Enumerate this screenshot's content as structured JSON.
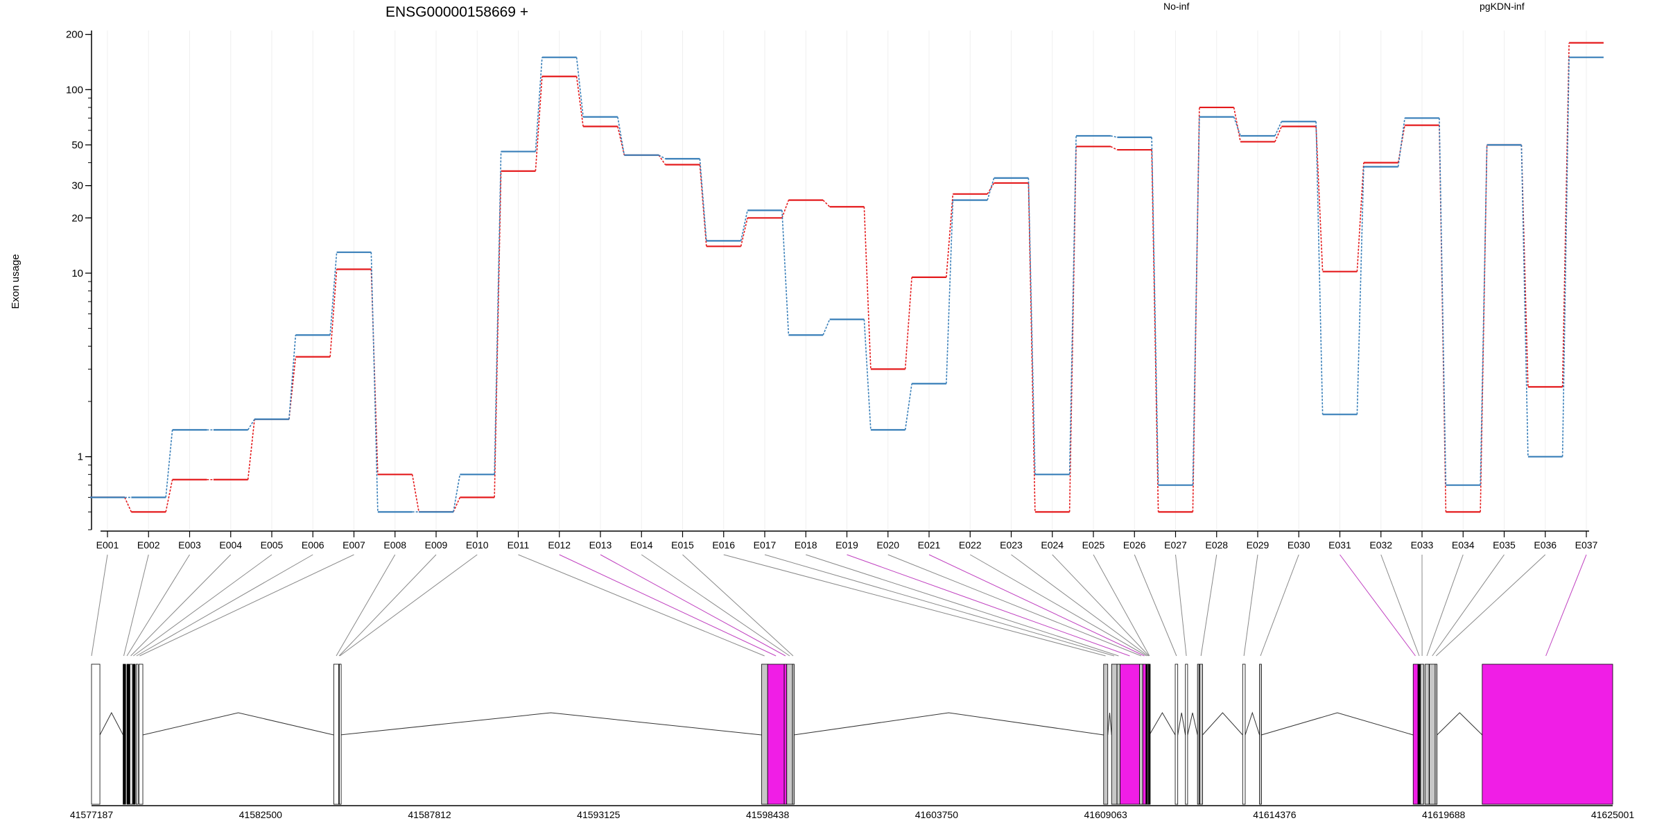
{
  "chart_data": {
    "type": "line",
    "title": "ENSG00000158669 +",
    "ylabel": "Exon usage",
    "yscale": "log",
    "ylim": [
      0.4,
      210
    ],
    "yticks": [
      1,
      10,
      20,
      30,
      50,
      100,
      200
    ],
    "categories": [
      "E001",
      "E002",
      "E003",
      "E004",
      "E005",
      "E006",
      "E007",
      "E008",
      "E009",
      "E010",
      "E011",
      "E012",
      "E013",
      "E014",
      "E015",
      "E016",
      "E017",
      "E018",
      "E019",
      "E020",
      "E021",
      "E022",
      "E023",
      "E024",
      "E025",
      "E026",
      "E027",
      "E028",
      "E029",
      "E030",
      "E031",
      "E032",
      "E033",
      "E034",
      "E035",
      "E036",
      "E037"
    ],
    "series": [
      {
        "name": "No-inf",
        "color": "#e41a1c",
        "values": [
          0.6,
          0.5,
          0.75,
          0.75,
          1.6,
          3.5,
          10.5,
          0.8,
          0.5,
          0.6,
          36,
          118,
          63,
          44,
          39,
          14,
          20,
          25,
          23,
          3,
          9.5,
          27,
          31,
          0.5,
          49,
          47,
          0.5,
          80,
          52,
          63,
          10.2,
          40,
          64,
          0.5,
          50,
          2.4,
          180
        ]
      },
      {
        "name": "pgKDN-inf",
        "color": "#377eb8",
        "values": [
          0.6,
          0.6,
          1.4,
          1.4,
          1.6,
          4.6,
          13,
          0.5,
          0.5,
          0.8,
          46,
          150,
          71,
          44,
          42,
          15,
          22,
          4.6,
          5.6,
          1.4,
          2.5,
          25,
          33,
          0.8,
          56,
          55,
          0.7,
          71,
          56,
          67,
          1.7,
          38,
          70,
          0.7,
          50,
          1,
          150
        ]
      }
    ],
    "legend_placement": "top",
    "gene_model": {
      "axis_ticks": [
        "41577187",
        "41582500",
        "41587812",
        "41593125",
        "41598438",
        "41603750",
        "41609063",
        "41614376",
        "41619688",
        "41625001"
      ],
      "range": [
        41577187,
        41625001
      ],
      "highlight_color": "#f01ee6",
      "exon_color": "#c8c8c8",
      "exons": [
        {
          "start": 41577187,
          "end": 41577450,
          "fill": "white",
          "link": "E001"
        },
        {
          "start": 41578180,
          "end": 41578260,
          "fill": "black",
          "link": "E002"
        },
        {
          "start": 41578300,
          "end": 41578380,
          "fill": "black",
          "link": "E003"
        },
        {
          "start": 41578400,
          "end": 41578470,
          "fill": "white",
          "link": "E004"
        },
        {
          "start": 41578490,
          "end": 41578560,
          "fill": "black",
          "link": "E005"
        },
        {
          "start": 41578590,
          "end": 41578650,
          "fill": "white",
          "link": "E006"
        },
        {
          "start": 41578680,
          "end": 41578800,
          "fill": "white",
          "link": "E007"
        },
        {
          "start": 41584800,
          "end": 41584960,
          "fill": "white",
          "link": "E008"
        },
        {
          "start": 41584960,
          "end": 41584980,
          "fill": "white",
          "link": "E009"
        },
        {
          "start": 41584980,
          "end": 41585000,
          "fill": "white",
          "link": "E010"
        },
        {
          "start": 41598250,
          "end": 41598440,
          "fill": "grey",
          "link": "E011"
        },
        {
          "start": 41598440,
          "end": 41598960,
          "fill": "magenta",
          "link": "E012"
        },
        {
          "start": 41598960,
          "end": 41599040,
          "fill": "magenta",
          "link": "E013"
        },
        {
          "start": 41599040,
          "end": 41599220,
          "fill": "grey",
          "link": "E014"
        },
        {
          "start": 41599220,
          "end": 41599260,
          "fill": "grey",
          "link": "E015"
        },
        {
          "start": 41609000,
          "end": 41609130,
          "fill": "grey",
          "link": "E016"
        },
        {
          "start": 41609250,
          "end": 41609420,
          "fill": "grey",
          "link": "E017"
        },
        {
          "start": 41609420,
          "end": 41609520,
          "fill": "grey",
          "link": "E018"
        },
        {
          "start": 41609520,
          "end": 41610130,
          "fill": "magenta",
          "link": "E019"
        },
        {
          "start": 41610130,
          "end": 41610230,
          "fill": "grey",
          "link": "E020"
        },
        {
          "start": 41610230,
          "end": 41610330,
          "fill": "magenta",
          "link": "E021"
        },
        {
          "start": 41610330,
          "end": 41610380,
          "fill": "black",
          "link": "E022"
        },
        {
          "start": 41610380,
          "end": 41610410,
          "fill": "grey",
          "link": "E023"
        },
        {
          "start": 41610410,
          "end": 41610440,
          "fill": "black",
          "link": "E024"
        },
        {
          "start": 41611250,
          "end": 41611330,
          "fill": "white",
          "link": "E025"
        },
        {
          "start": 41611570,
          "end": 41611640,
          "fill": "white",
          "link": "E026"
        },
        {
          "start": 41611950,
          "end": 41612000,
          "fill": "grey",
          "link": "E027"
        },
        {
          "start": 41612020,
          "end": 41612110,
          "fill": "grey",
          "link": "E028"
        },
        {
          "start": 41613370,
          "end": 41613450,
          "fill": "white",
          "link": "E029"
        },
        {
          "start": 41613900,
          "end": 41613960,
          "fill": "grey",
          "link": "E030"
        },
        {
          "start": 41618730,
          "end": 41618880,
          "fill": "magenta",
          "link": "E031"
        },
        {
          "start": 41618880,
          "end": 41618960,
          "fill": "black",
          "link": "E032"
        },
        {
          "start": 41618960,
          "end": 41619060,
          "fill": "grey",
          "link": "E033"
        },
        {
          "start": 41619100,
          "end": 41619230,
          "fill": "grey",
          "link": "E034"
        },
        {
          "start": 41619240,
          "end": 41619420,
          "fill": "grey",
          "link": "E035"
        },
        {
          "start": 41619420,
          "end": 41619480,
          "fill": "grey",
          "link": "E036"
        },
        {
          "start": 41620900,
          "end": 41625001,
          "fill": "magenta",
          "link": "E037"
        }
      ],
      "links": [
        {
          "exon": "E001",
          "target": 41577187,
          "highlight": false
        },
        {
          "exon": "E002",
          "target": 41578200,
          "highlight": false
        },
        {
          "exon": "E003",
          "target": 41578300,
          "highlight": false
        },
        {
          "exon": "E004",
          "target": 41578420,
          "highlight": false
        },
        {
          "exon": "E005",
          "target": 41578500,
          "highlight": false
        },
        {
          "exon": "E006",
          "target": 41578600,
          "highlight": false
        },
        {
          "exon": "E007",
          "target": 41578700,
          "highlight": false
        },
        {
          "exon": "E008",
          "target": 41584880,
          "highlight": false
        },
        {
          "exon": "E009",
          "target": 41584970,
          "highlight": false
        },
        {
          "exon": "E010",
          "target": 41584990,
          "highlight": false
        },
        {
          "exon": "E011",
          "target": 41598340,
          "highlight": false
        },
        {
          "exon": "E012",
          "target": 41598700,
          "highlight": true
        },
        {
          "exon": "E013",
          "target": 41599000,
          "highlight": true
        },
        {
          "exon": "E014",
          "target": 41599130,
          "highlight": false
        },
        {
          "exon": "E015",
          "target": 41599240,
          "highlight": false
        },
        {
          "exon": "E016",
          "target": 41609060,
          "highlight": false
        },
        {
          "exon": "E017",
          "target": 41609330,
          "highlight": false
        },
        {
          "exon": "E018",
          "target": 41609470,
          "highlight": false
        },
        {
          "exon": "E019",
          "target": 41609820,
          "highlight": true
        },
        {
          "exon": "E020",
          "target": 41610180,
          "highlight": false
        },
        {
          "exon": "E021",
          "target": 41610280,
          "highlight": true
        },
        {
          "exon": "E022",
          "target": 41610350,
          "highlight": false
        },
        {
          "exon": "E023",
          "target": 41610395,
          "highlight": false
        },
        {
          "exon": "E024",
          "target": 41610425,
          "highlight": false
        },
        {
          "exon": "E025",
          "target": 41610440,
          "highlight": false
        },
        {
          "exon": "E026",
          "target": 41611290,
          "highlight": false
        },
        {
          "exon": "E027",
          "target": 41611600,
          "highlight": false
        },
        {
          "exon": "E028",
          "target": 41612060,
          "highlight": false
        },
        {
          "exon": "E029",
          "target": 41613410,
          "highlight": false
        },
        {
          "exon": "E030",
          "target": 41613930,
          "highlight": false
        },
        {
          "exon": "E031",
          "target": 41618800,
          "highlight": true
        },
        {
          "exon": "E032",
          "target": 41618920,
          "highlight": false
        },
        {
          "exon": "E033",
          "target": 41619010,
          "highlight": false
        },
        {
          "exon": "E034",
          "target": 41619160,
          "highlight": false
        },
        {
          "exon": "E035",
          "target": 41619330,
          "highlight": false
        },
        {
          "exon": "E036",
          "target": 41619450,
          "highlight": false
        },
        {
          "exon": "E037",
          "target": 41622900,
          "highlight": true
        }
      ]
    }
  }
}
